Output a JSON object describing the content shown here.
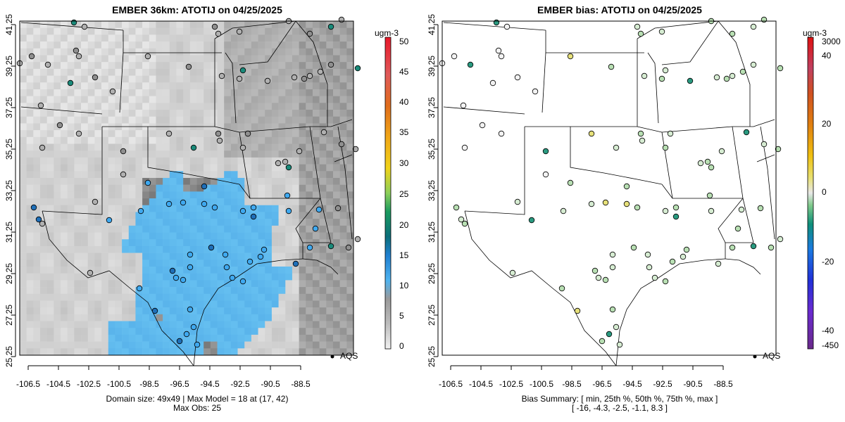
{
  "left_panel": {
    "title": "EMBER 36km: ATOTIJ on 04/25/2025",
    "caption_line1": "Domain size: 49x49 | Max Model = 18 at (17, 42)",
    "caption_line2": "Max Obs: 25",
    "colorbar_unit": "ugm-3",
    "colorbar_ticks": [
      "0",
      "5",
      "10",
      "15",
      "20",
      "25",
      "30",
      "35",
      "40",
      "45",
      "50"
    ],
    "legend_label": "AQS"
  },
  "right_panel": {
    "title": "EMBER bias: ATOTIJ on 04/25/2025",
    "caption_line1": "Bias Summary: [ min, 25th %, 50th %, 75th %, max ]",
    "caption_line2": "[ -16,   -4.3,   -2.5,   -1.1,   8.3 ]",
    "colorbar_unit": "ugm-3",
    "colorbar_ticks": [
      "-450",
      "-40",
      "-20",
      "0",
      "20",
      "40",
      "3000"
    ],
    "legend_label": "AQS"
  },
  "axes": {
    "x_ticks": [
      "-106.5",
      "-104.5",
      "-102.5",
      "-100.5",
      "-98.5",
      "-96.5",
      "-94.5",
      "-92.5",
      "-90.5",
      "-88.5"
    ],
    "y_ticks": [
      "25.25",
      "27.25",
      "29.25",
      "31.25",
      "33.25",
      "35.25",
      "37.25",
      "39.25",
      "41.25"
    ],
    "lon_range": [
      -107.5,
      -88.0
    ],
    "lat_range": [
      25.0,
      41.5
    ]
  },
  "colors": {
    "obs_blue": "#3fa9f0",
    "bias_green": "#b8dfb3",
    "frame": "#000000"
  }
}
